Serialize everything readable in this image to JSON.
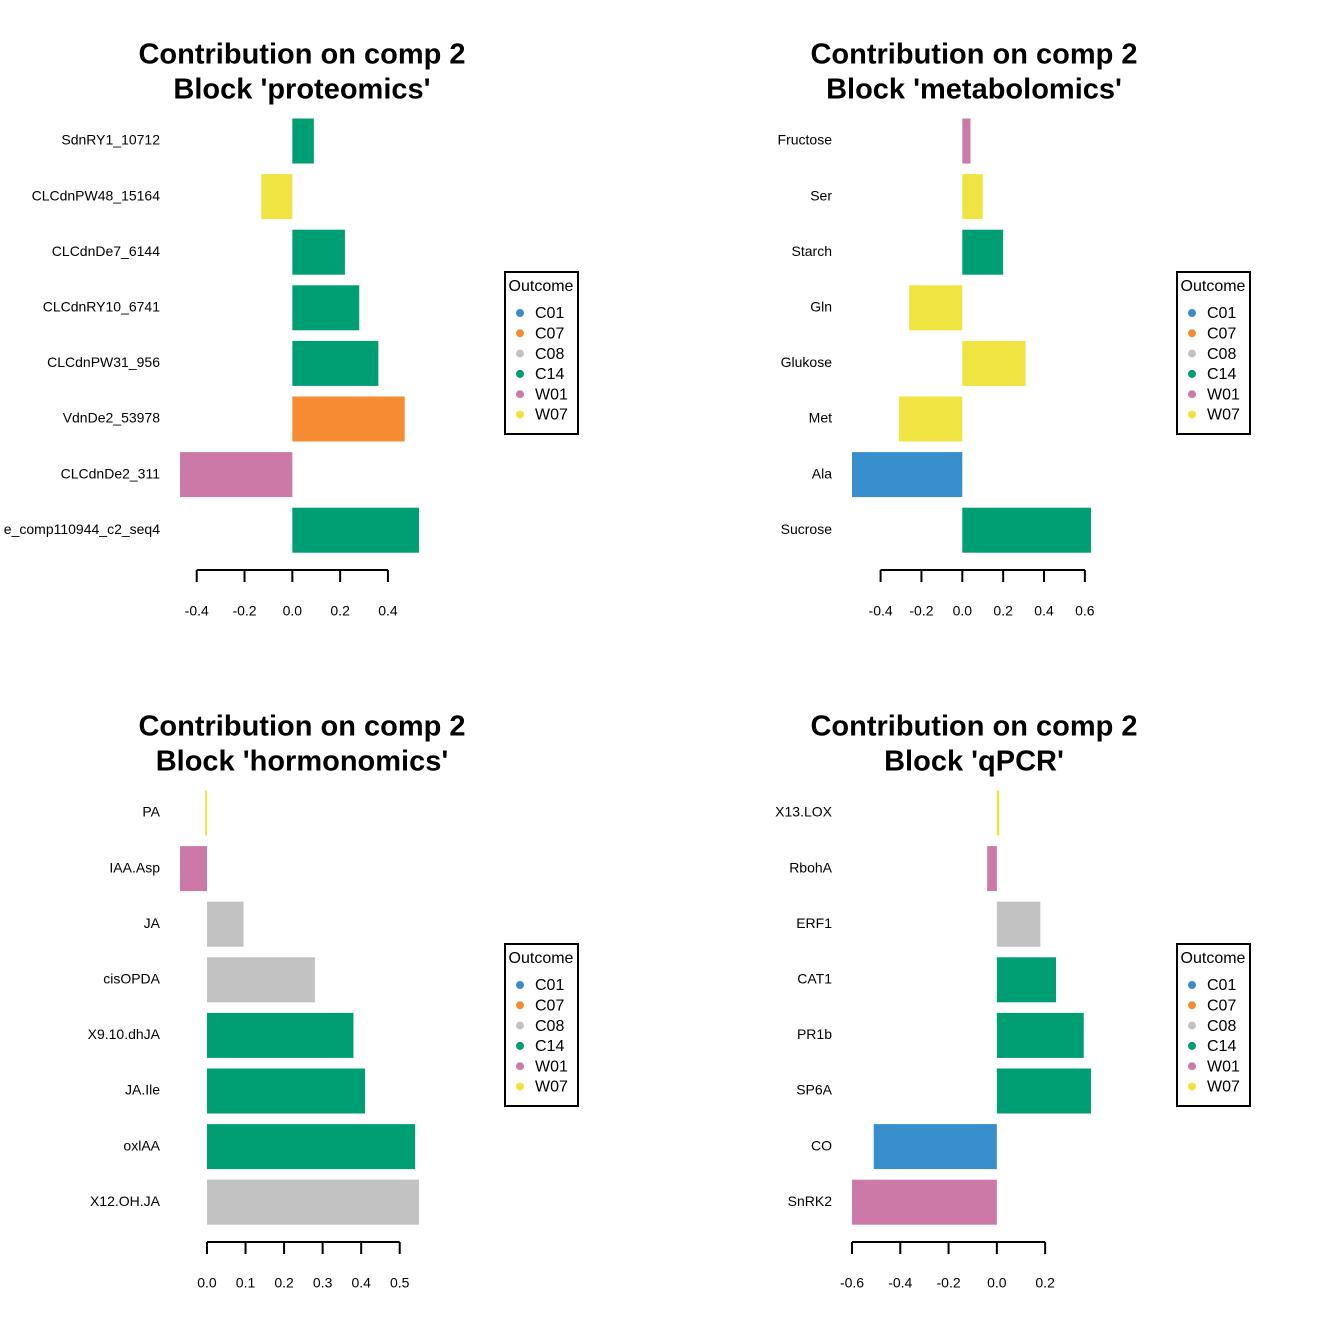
{
  "chart_data": [
    {
      "type": "barh",
      "title": "Contribution on comp 2",
      "subtitle": "Block 'proteomics'",
      "categories": [
        "SdnRY1_10712",
        "CLCdnPW48_15164",
        "CLCdnDe7_6144",
        "CLCdnRY10_6741",
        "CLCdnPW31_956",
        "VdnDe2_53978",
        "CLCdnDe2_311",
        "e_comp110944_c2_seq4"
      ],
      "values": [
        0.09,
        -0.13,
        0.22,
        0.28,
        0.36,
        0.47,
        -0.47,
        0.53
      ],
      "colors": [
        "#009E73",
        "#F0E442",
        "#009E73",
        "#009E73",
        "#009E73",
        "#F68B33",
        "#CC79A7",
        "#009E73"
      ],
      "xlim": [
        -0.47,
        0.53
      ],
      "xticks": [
        -0.4,
        -0.2,
        {
          "value": 0,
          "label": "0.0"
        },
        0.2,
        0.4
      ],
      "legend": {
        "title": "Outcome",
        "position": "right",
        "items": [
          {
            "name": "C01",
            "color": "#388ECC"
          },
          {
            "name": "C07",
            "color": "#F68B33"
          },
          {
            "name": "C08",
            "color": "#C2C2C2"
          },
          {
            "name": "C14",
            "color": "#009E73"
          },
          {
            "name": "W01",
            "color": "#CC79A7"
          },
          {
            "name": "W07",
            "color": "#F0E442"
          }
        ]
      }
    },
    {
      "type": "barh",
      "title": "Contribution on comp 2",
      "subtitle": "Block 'metabolomics'",
      "categories": [
        "Fructose",
        "Ser",
        "Starch",
        "Gln",
        "Glukose",
        "Met",
        "Ala",
        "Sucrose"
      ],
      "values": [
        0.04,
        0.1,
        0.2,
        -0.26,
        0.31,
        -0.31,
        -0.54,
        0.63
      ],
      "colors": [
        "#CC79A7",
        "#F0E442",
        "#009E73",
        "#F0E442",
        "#F0E442",
        "#F0E442",
        "#388ECC",
        "#009E73"
      ],
      "xlim": [
        -0.54,
        0.63
      ],
      "xticks": [
        -0.4,
        -0.2,
        {
          "value": 0,
          "label": "0.0"
        },
        0.2,
        0.4,
        0.6
      ],
      "legend": {
        "title": "Outcome",
        "position": "right",
        "items": [
          {
            "name": "C01",
            "color": "#388ECC"
          },
          {
            "name": "C07",
            "color": "#F68B33"
          },
          {
            "name": "C08",
            "color": "#C2C2C2"
          },
          {
            "name": "C14",
            "color": "#009E73"
          },
          {
            "name": "W01",
            "color": "#CC79A7"
          },
          {
            "name": "W07",
            "color": "#F0E442"
          }
        ]
      }
    },
    {
      "type": "barh",
      "title": "Contribution on comp 2",
      "subtitle": "Block 'hormonomics'",
      "categories": [
        "PA",
        "IAA.Asp",
        "JA",
        "cisOPDA",
        "X9.10.dhJA",
        "JA.Ile",
        "oxlAA",
        "X12.OH.JA"
      ],
      "values": [
        -0.005,
        -0.07,
        0.095,
        0.28,
        0.38,
        0.41,
        0.54,
        0.55
      ],
      "colors": [
        "#F0E442",
        "#CC79A7",
        "#C2C2C2",
        "#C2C2C2",
        "#009E73",
        "#009E73",
        "#009E73",
        "#C2C2C2"
      ],
      "xlim": [
        -0.07,
        0.55
      ],
      "xticks": [
        {
          "value": 0,
          "label": "0.0"
        },
        0.1,
        0.2,
        0.3,
        0.4,
        0.5
      ],
      "legend": {
        "title": "Outcome",
        "position": "right",
        "items": [
          {
            "name": "C01",
            "color": "#388ECC"
          },
          {
            "name": "C07",
            "color": "#F68B33"
          },
          {
            "name": "C08",
            "color": "#C2C2C2"
          },
          {
            "name": "C14",
            "color": "#009E73"
          },
          {
            "name": "W01",
            "color": "#CC79A7"
          },
          {
            "name": "W07",
            "color": "#F0E442"
          }
        ]
      }
    },
    {
      "type": "barh",
      "title": "Contribution on comp 2",
      "subtitle": "Block 'qPCR'",
      "categories": [
        "X13.LOX",
        "RbohA",
        "ERF1",
        "CAT1",
        "PR1b",
        "SP6A",
        "CO",
        "SnRK2"
      ],
      "values": [
        0.01,
        -0.04,
        0.18,
        0.245,
        0.36,
        0.39,
        -0.51,
        -0.6
      ],
      "colors": [
        "#F0E442",
        "#CC79A7",
        "#C2C2C2",
        "#009E73",
        "#009E73",
        "#009E73",
        "#388ECC",
        "#CC79A7"
      ],
      "xlim": [
        -0.6,
        0.39
      ],
      "xticks": [
        -0.6,
        -0.4,
        -0.2,
        {
          "value": 0,
          "label": "0.0"
        },
        0.2
      ],
      "legend": {
        "title": "Outcome",
        "position": "right",
        "items": [
          {
            "name": "C01",
            "color": "#388ECC"
          },
          {
            "name": "C07",
            "color": "#F68B33"
          },
          {
            "name": "C08",
            "color": "#C2C2C2"
          },
          {
            "name": "C14",
            "color": "#009E73"
          },
          {
            "name": "W01",
            "color": "#CC79A7"
          },
          {
            "name": "W07",
            "color": "#F0E442"
          }
        ]
      }
    }
  ]
}
